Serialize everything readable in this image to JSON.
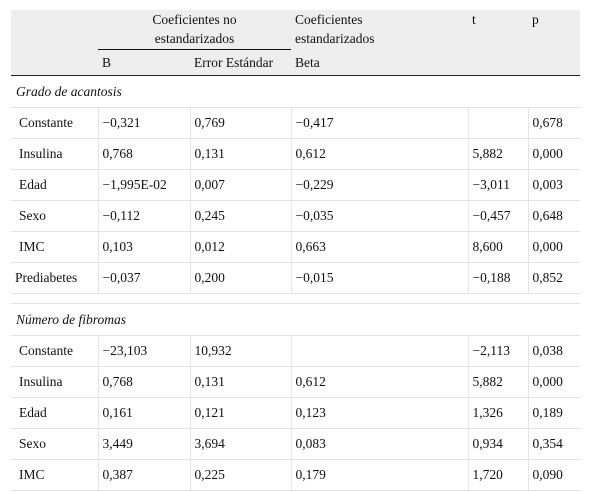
{
  "header": {
    "group_unstd": "Coeficientes no estandarizados",
    "group_std": "Coeficientes estandarizados",
    "t": "t",
    "p": "p",
    "b": "B",
    "se": "Error Estándar",
    "beta": "Beta"
  },
  "sections": [
    {
      "title": "Grado de acantosis",
      "rows": [
        {
          "label": "Constante",
          "b": "−0,321",
          "se": "0,769",
          "beta": "−0,417",
          "t": "",
          "p": "0,678"
        },
        {
          "label": "Insulina",
          "b": "0,768",
          "se": "0,131",
          "beta": "0,612",
          "t": "5,882",
          "p": "0,000"
        },
        {
          "label": "Edad",
          "b": "−1,995E-02",
          "se": "0,007",
          "beta": "−0,229",
          "t": "−3,011",
          "p": "0,003"
        },
        {
          "label": "Sexo",
          "b": "−0,112",
          "se": "0,245",
          "beta": "−0,035",
          "t": "−0,457",
          "p": "0,648"
        },
        {
          "label": "IMC",
          "b": "0,103",
          "se": "0,012",
          "beta": "0,663",
          "t": "8,600",
          "p": "0,000"
        },
        {
          "label": "Prediabetes",
          "b": "−0,037",
          "se": "0,200",
          "beta": "−0,015",
          "t": "−0,188",
          "p": "0,852"
        }
      ]
    },
    {
      "title": "Número de fibromas",
      "rows": [
        {
          "label": "Constante",
          "b": "−23,103",
          "se": "10,932",
          "beta": "",
          "t": "−2,113",
          "p": "0,038"
        },
        {
          "label": "Insulina",
          "b": "0,768",
          "se": "0,131",
          "beta": "0,612",
          "t": "5,882",
          "p": "0,000"
        },
        {
          "label": "Edad",
          "b": "0,161",
          "se": "0,121",
          "beta": "0,123",
          "t": "1,326",
          "p": "0,189"
        },
        {
          "label": "Sexo",
          "b": "3,449",
          "se": "3,694",
          "beta": "0,083",
          "t": "0,934",
          "p": "0,354"
        },
        {
          "label": "IMC",
          "b": "0,387",
          "se": "0,225",
          "beta": "0,179",
          "t": "1,720",
          "p": "0,090"
        }
      ]
    }
  ]
}
